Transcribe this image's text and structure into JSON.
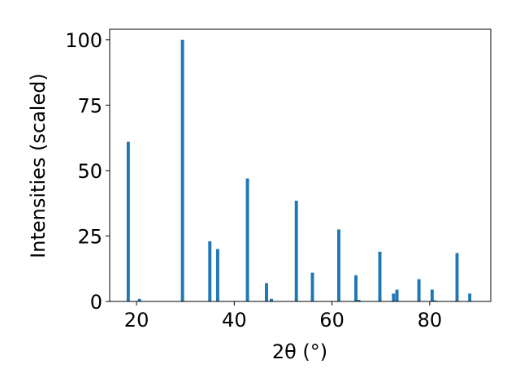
{
  "chart_data": {
    "type": "bar",
    "xlabel": "2θ (°)",
    "ylabel": "Intensities (scaled)",
    "xlim": [
      14.5,
      92.5
    ],
    "ylim": [
      0,
      104
    ],
    "xticks": [
      20,
      40,
      60,
      80
    ],
    "yticks": [
      0,
      25,
      50,
      75,
      100
    ],
    "bar_width_units": 0.65,
    "color": "#1f77b4",
    "grid": false,
    "series": [
      {
        "x": [
          18.3,
          20.6,
          29.4,
          35.0,
          36.6,
          42.7,
          46.6,
          47.6,
          52.7,
          56.0,
          61.4,
          64.9,
          65.5,
          69.8,
          72.6,
          73.3,
          77.8,
          80.5,
          81.1,
          85.6,
          88.2
        ],
        "values": [
          61,
          1,
          100,
          23,
          20,
          47,
          7,
          1,
          38.5,
          11,
          27.5,
          10,
          0.6,
          19,
          3,
          4.5,
          8.5,
          4.5,
          0.4,
          18.5,
          3
        ]
      }
    ]
  }
}
